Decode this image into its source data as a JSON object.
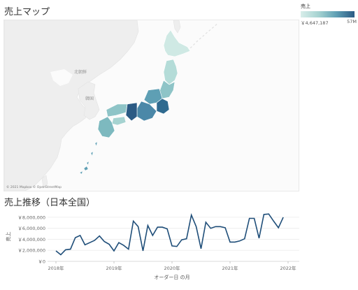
{
  "map": {
    "title": "売上マップ",
    "legend": {
      "title": "売上",
      "min_label": "￥4,647,187",
      "max_label": "57M"
    },
    "attribution": "© 2021 Mapbox © OpenStreetMap",
    "place_labels": [
      "北朝鮮",
      "韓国"
    ],
    "colors": {
      "ocean": "#fbfbfb",
      "land": "#eeeeee",
      "scale_low": "#d8eeea",
      "scale_high": "#2b5a84"
    }
  },
  "chart_title": "売上推移（日本全国）",
  "chart_data": {
    "type": "line",
    "title": "売上推移（日本全国）",
    "xlabel": "オーダー日 の月",
    "ylabel": "売上",
    "x_ticks": [
      "2018年",
      "2019年",
      "2020年",
      "2021年",
      "2022年"
    ],
    "y_ticks": [
      "￥0",
      "￥2,000,000",
      "￥4,000,000",
      "￥6,000,000",
      "￥8,000,000"
    ],
    "ylim": [
      0,
      9000000
    ],
    "grid": true,
    "line_color": "#1f4e79",
    "series": [
      {
        "x": [
          "2018-01",
          "2018-02",
          "2018-03",
          "2018-04",
          "2018-05",
          "2018-06",
          "2018-07",
          "2018-08",
          "2018-09",
          "2018-10",
          "2018-11",
          "2018-12",
          "2019-01",
          "2019-02",
          "2019-03",
          "2019-04",
          "2019-05",
          "2019-06",
          "2019-07",
          "2019-08",
          "2019-09",
          "2019-10",
          "2019-11",
          "2019-12",
          "2020-01",
          "2020-02",
          "2020-03",
          "2020-04",
          "2020-05",
          "2020-06",
          "2020-07",
          "2020-08",
          "2020-09",
          "2020-10",
          "2020-11",
          "2020-12",
          "2021-01",
          "2021-02",
          "2021-03",
          "2021-04",
          "2021-05",
          "2021-06",
          "2021-07",
          "2021-08",
          "2021-09",
          "2021-10",
          "2021-11",
          "2021-12"
        ],
        "values": [
          1900000,
          1200000,
          2100000,
          2200000,
          4300000,
          4700000,
          3000000,
          3400000,
          3800000,
          4600000,
          3600000,
          3100000,
          1900000,
          3400000,
          2900000,
          2200000,
          7300000,
          6300000,
          1900000,
          6500000,
          4700000,
          6200000,
          6200000,
          5900000,
          2800000,
          2700000,
          3900000,
          4100000,
          8400000,
          6300000,
          2300000,
          7100000,
          6000000,
          6300000,
          6300000,
          6100000,
          3500000,
          3500000,
          3700000,
          4100000,
          7800000,
          7800000,
          4200000,
          8500000,
          8600000,
          7300000,
          6100000,
          8000000
        ]
      }
    ]
  }
}
